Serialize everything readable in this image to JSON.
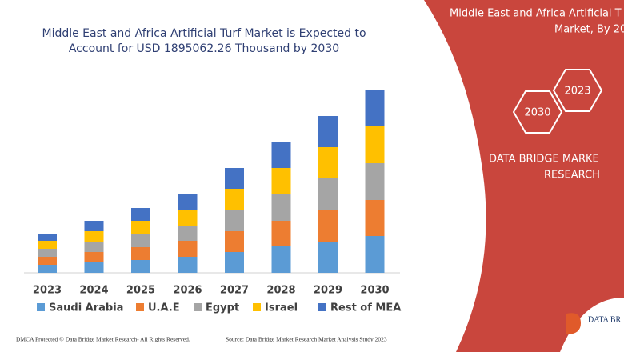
{
  "chart_data": {
    "type": "stacked-bar",
    "title": [
      "Middle East and Africa Artificial Turf Market is Expected to",
      "Account for USD 1895062.26 Thousand by 2030"
    ],
    "categories": [
      "2023",
      "2024",
      "2025",
      "2026",
      "2027",
      "2028",
      "2029",
      "2030"
    ],
    "series": [
      {
        "name": "Saudi Arabia",
        "color": "#5b9bd5",
        "values": [
          10,
          13,
          16,
          20,
          26,
          33,
          39,
          46
        ]
      },
      {
        "name": "U.A.E",
        "color": "#ed7d31",
        "values": [
          10,
          13,
          16,
          20,
          26,
          32,
          39,
          45
        ]
      },
      {
        "name": "Egypt",
        "color": "#a5a5a5",
        "values": [
          10,
          13,
          16,
          19,
          26,
          33,
          40,
          46
        ]
      },
      {
        "name": "Israel",
        "color": "#ffc000",
        "values": [
          10,
          13,
          17,
          20,
          27,
          33,
          39,
          46
        ]
      },
      {
        "name": "Rest of MEA",
        "color": "#4472c4",
        "values": [
          9,
          13,
          16,
          19,
          26,
          32,
          39,
          45
        ]
      }
    ],
    "ylim": [
      0,
      228
    ]
  },
  "panel": {
    "heading": [
      "Middle East and Africa Artificial T",
      "Market, By 20"
    ],
    "hexagons": [
      "2023",
      "2030"
    ],
    "brand": [
      "DATA BRIDGE MARKE",
      "RESEARCH"
    ],
    "logo": "DATA BR"
  },
  "footer": {
    "left": "DMCA Protected © Data Bridge Market Research- All Rights Reserved.",
    "right": "Source: Data Bridge Market Research Market Analysis Study 2023"
  }
}
